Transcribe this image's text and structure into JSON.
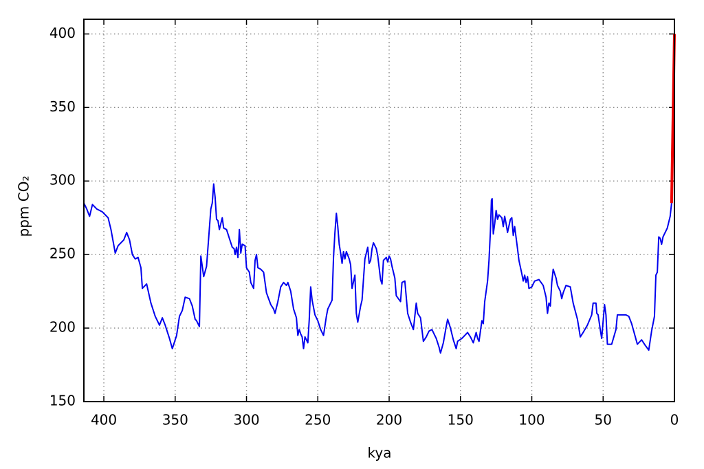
{
  "chart_data": {
    "type": "line",
    "xlabel": "kya",
    "ylabel": "ppm CO₂",
    "xlim": [
      414,
      0
    ],
    "ylim": [
      150,
      410
    ],
    "xticks": [
      400,
      350,
      300,
      250,
      200,
      150,
      100,
      50,
      0
    ],
    "yticks": [
      150,
      200,
      250,
      300,
      350,
      400
    ],
    "grid": true,
    "series": [
      {
        "color": "#0000ee",
        "x": [
          414,
          412,
          410,
          408,
          405,
          401,
          397,
          395,
          392,
          390,
          386,
          384,
          382,
          380,
          378,
          376,
          374,
          373,
          370,
          367,
          364,
          361,
          359,
          357,
          354,
          352,
          349,
          347,
          345,
          343,
          340,
          338,
          336,
          335,
          333,
          332,
          330,
          328,
          326,
          325,
          324,
          323,
          322,
          321,
          320,
          319,
          317,
          316,
          314,
          313,
          312,
          310,
          308.7,
          308,
          307,
          306,
          305,
          304,
          303,
          301,
          300,
          298,
          297,
          295,
          294,
          293,
          292,
          290,
          288,
          286,
          283,
          281,
          280,
          278,
          276,
          274,
          272,
          271,
          269,
          267,
          265,
          264,
          263,
          262,
          261,
          260,
          259,
          257,
          256,
          255,
          254,
          252,
          250,
          248,
          246,
          244,
          243,
          240,
          239,
          238,
          237,
          236,
          235,
          234,
          233,
          232,
          231,
          230,
          228,
          227,
          226,
          224,
          223,
          222,
          220,
          219,
          217,
          215,
          214,
          213,
          212,
          211,
          209,
          208,
          207,
          206,
          205,
          204,
          202,
          201,
          200,
          199,
          198,
          196,
          195,
          192,
          191,
          189,
          187,
          185,
          183,
          181,
          180,
          178,
          176,
          174,
          172,
          170,
          167,
          165,
          164,
          162,
          160,
          159,
          157,
          155,
          153,
          152,
          149,
          147,
          145,
          143,
          141,
          139,
          138,
          137,
          135,
          134,
          133,
          131,
          130,
          129,
          128.3,
          127.8,
          127,
          126,
          125,
          124,
          123,
          121,
          120,
          119,
          118,
          117,
          115,
          114,
          113,
          112,
          110,
          109,
          107,
          106,
          105,
          104,
          103,
          102,
          100,
          98,
          95,
          92,
          90,
          89,
          88,
          87,
          86,
          85,
          83,
          82,
          80,
          79,
          78,
          76,
          73,
          71,
          68,
          66,
          64,
          61,
          58,
          57,
          55,
          54.4,
          53.5,
          52,
          51,
          49,
          48,
          47,
          44,
          41,
          40,
          38,
          34,
          32,
          30,
          28,
          26,
          23,
          21,
          18,
          16,
          14,
          13,
          12,
          11,
          10,
          9,
          8,
          6,
          5,
          3,
          2
        ],
        "values": [
          285,
          281,
          276,
          284,
          281,
          279,
          275,
          267,
          251,
          256,
          260,
          265,
          260,
          250,
          247,
          248,
          241,
          227,
          230,
          217,
          208,
          202,
          207,
          202,
          193,
          186,
          195,
          208,
          212,
          221,
          220,
          215,
          206,
          205,
          201,
          249,
          235,
          242,
          268,
          281,
          285,
          298,
          289,
          274,
          273,
          267,
          275,
          268,
          267,
          264,
          261,
          255,
          254,
          250,
          255,
          248,
          267,
          251,
          257,
          256,
          241,
          238,
          231,
          227,
          246,
          250,
          241,
          240,
          238,
          224,
          216,
          213,
          210,
          218,
          228,
          231,
          229,
          231,
          225,
          213,
          207,
          195,
          199,
          196,
          194,
          186,
          194,
          190,
          206,
          228,
          219,
          209,
          205,
          199,
          195,
          208,
          213,
          219,
          248,
          265,
          278,
          269,
          257,
          251,
          244,
          252,
          247,
          252,
          247,
          243,
          227,
          236,
          210,
          204,
          215,
          219,
          247,
          255,
          244,
          246,
          254,
          258,
          254,
          249,
          241,
          233,
          230,
          246,
          248,
          245,
          249,
          247,
          242,
          234,
          222,
          218,
          231,
          232,
          210,
          204,
          199,
          217,
          210,
          207,
          191,
          194,
          198,
          199,
          193,
          187,
          183,
          190,
          201,
          206,
          200,
          192,
          186,
          191,
          193,
          195,
          197,
          194,
          190,
          197,
          193,
          191,
          205,
          203,
          218,
          232,
          246,
          266,
          287,
          288,
          264,
          271,
          280,
          274,
          277,
          275,
          269,
          276,
          271,
          265,
          274,
          275,
          263,
          269,
          254,
          246,
          237,
          232,
          236,
          231,
          235,
          227,
          228,
          232,
          233,
          229,
          221,
          210,
          217,
          215,
          231,
          240,
          234,
          229,
          225,
          220,
          224,
          229,
          228,
          217,
          206,
          194,
          197,
          202,
          209,
          217,
          217,
          210,
          209,
          199,
          193,
          216,
          209,
          189,
          189,
          199,
          209,
          209,
          209,
          208,
          203,
          196,
          189,
          192,
          189,
          185,
          198,
          208,
          236,
          238,
          262,
          261,
          257,
          262,
          266,
          268,
          276,
          285
        ]
      },
      {
        "color": "#ee0000",
        "x": [
          2,
          0
        ],
        "values": [
          285,
          400
        ]
      }
    ]
  }
}
